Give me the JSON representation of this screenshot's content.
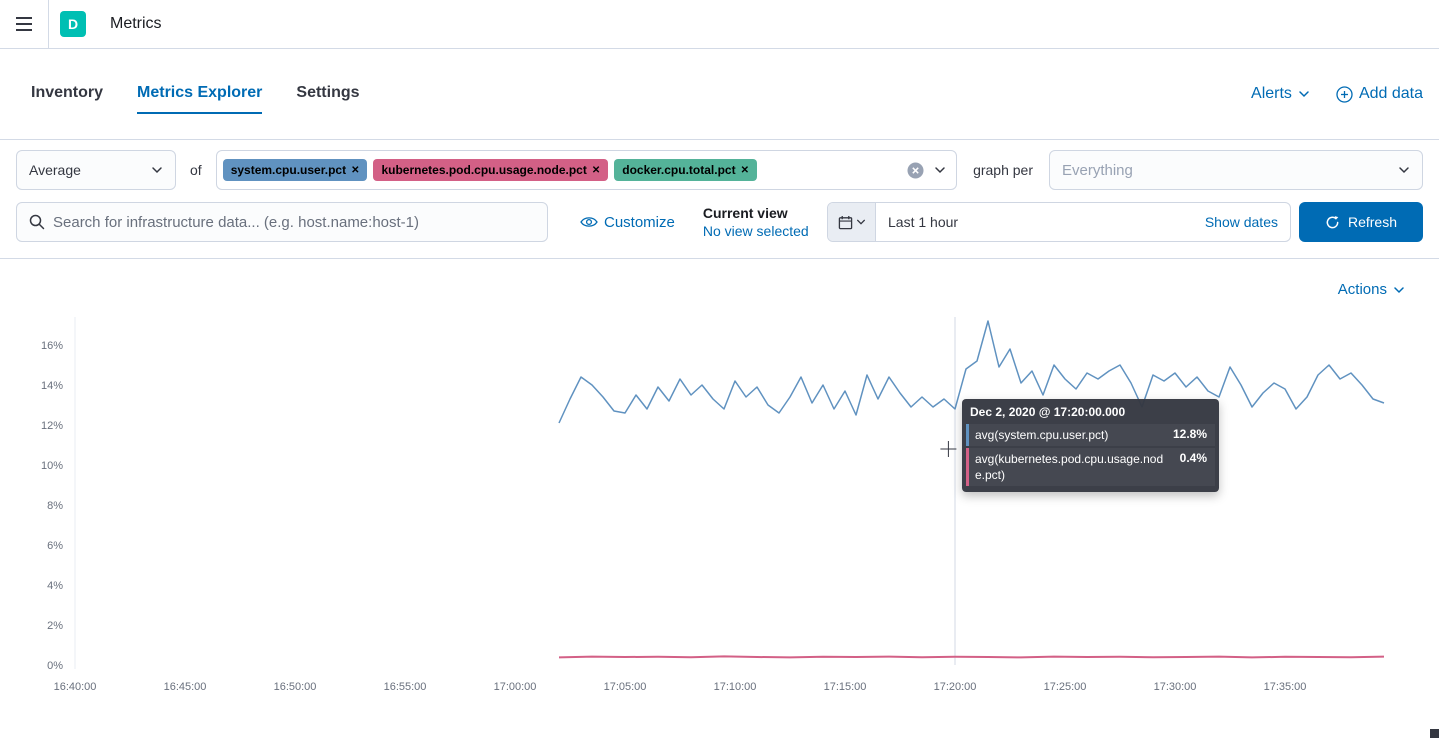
{
  "header": {
    "logo": "D",
    "title": "Metrics"
  },
  "tabs": [
    {
      "label": "Inventory",
      "active": false
    },
    {
      "label": "Metrics Explorer",
      "active": true
    },
    {
      "label": "Settings",
      "active": false
    }
  ],
  "nav_actions": {
    "alerts": "Alerts",
    "add_data": "Add data"
  },
  "toolbar": {
    "aggregation": "Average",
    "of_label": "of",
    "metrics": [
      {
        "label": "system.cpu.user.pct",
        "color": "#6092C0"
      },
      {
        "label": "kubernetes.pod.cpu.usage.node.pct",
        "color": "#D36086"
      },
      {
        "label": "docker.cpu.total.pct",
        "color": "#54B399"
      }
    ],
    "graph_per_label": "graph per",
    "graph_per_placeholder": "Everything"
  },
  "searchbar": {
    "placeholder": "Search for infrastructure data... (e.g. host.name:host-1)",
    "customize_label": "Customize",
    "current_view_label": "Current view",
    "current_view_value": "No view selected",
    "time_range": "Last 1 hour",
    "show_dates": "Show dates",
    "refresh_label": "Refresh"
  },
  "chart_section": {
    "actions_label": "Actions"
  },
  "tooltip": {
    "title": "Dec 2, 2020 @ 17:20:00.000",
    "rows": [
      {
        "label": "avg(system.cpu.user.pct)",
        "value": "12.8%",
        "color": "#6092C0"
      },
      {
        "label": "avg(kubernetes.pod.cpu.usage.node.pct)",
        "value": "0.4%",
        "color": "#D36086"
      }
    ]
  },
  "chart_data": {
    "type": "line",
    "title": "",
    "xlabel": "",
    "ylabel": "",
    "x_axis_start_time": "16:40:00",
    "x_ticks": [
      {
        "label": "16:40:00",
        "minute": 0
      },
      {
        "label": "16:45:00",
        "minute": 5
      },
      {
        "label": "16:50:00",
        "minute": 10
      },
      {
        "label": "16:55:00",
        "minute": 15
      },
      {
        "label": "17:00:00",
        "minute": 20
      },
      {
        "label": "17:05:00",
        "minute": 25
      },
      {
        "label": "17:10:00",
        "minute": 30
      },
      {
        "label": "17:15:00",
        "minute": 35
      },
      {
        "label": "17:20:00",
        "minute": 40
      },
      {
        "label": "17:25:00",
        "minute": 45
      },
      {
        "label": "17:30:00",
        "minute": 50
      },
      {
        "label": "17:35:00",
        "minute": 55
      }
    ],
    "y_ticks": [
      {
        "label": "0%",
        "value": 0
      },
      {
        "label": "2%",
        "value": 2
      },
      {
        "label": "4%",
        "value": 4
      },
      {
        "label": "6%",
        "value": 6
      },
      {
        "label": "8%",
        "value": 8
      },
      {
        "label": "10%",
        "value": 10
      },
      {
        "label": "12%",
        "value": 12
      },
      {
        "label": "14%",
        "value": 14
      },
      {
        "label": "16%",
        "value": 16
      }
    ],
    "ylim": [
      0,
      17.4
    ],
    "x_range_minutes": [
      0,
      60
    ],
    "grid": false,
    "crosshair_minute": 40,
    "cursor": {
      "minute": 39.7,
      "pct": 10.8
    },
    "series": [
      {
        "name": "avg(system.cpu.user.pct)",
        "color": "#6092C0",
        "width": 1.5,
        "points": [
          [
            22,
            12.1
          ],
          [
            22.5,
            13.3
          ],
          [
            23,
            14.4
          ],
          [
            23.5,
            14.0
          ],
          [
            24,
            13.4
          ],
          [
            24.5,
            12.7
          ],
          [
            25,
            12.6
          ],
          [
            25.5,
            13.5
          ],
          [
            26,
            12.8
          ],
          [
            26.5,
            13.9
          ],
          [
            27,
            13.2
          ],
          [
            27.5,
            14.3
          ],
          [
            28,
            13.5
          ],
          [
            28.5,
            14.0
          ],
          [
            29,
            13.3
          ],
          [
            29.5,
            12.8
          ],
          [
            30,
            14.2
          ],
          [
            30.5,
            13.4
          ],
          [
            31,
            13.9
          ],
          [
            31.5,
            13.0
          ],
          [
            32,
            12.6
          ],
          [
            32.5,
            13.4
          ],
          [
            33,
            14.4
          ],
          [
            33.5,
            13.1
          ],
          [
            34,
            14.0
          ],
          [
            34.5,
            12.8
          ],
          [
            35,
            13.7
          ],
          [
            35.5,
            12.5
          ],
          [
            36,
            14.5
          ],
          [
            36.5,
            13.3
          ],
          [
            37,
            14.4
          ],
          [
            37.5,
            13.6
          ],
          [
            38,
            12.9
          ],
          [
            38.5,
            13.4
          ],
          [
            39,
            12.9
          ],
          [
            39.5,
            13.3
          ],
          [
            40,
            12.8
          ],
          [
            40.5,
            14.8
          ],
          [
            41,
            15.2
          ],
          [
            41.5,
            17.2
          ],
          [
            42,
            14.9
          ],
          [
            42.5,
            15.8
          ],
          [
            43,
            14.1
          ],
          [
            43.5,
            14.7
          ],
          [
            44,
            13.5
          ],
          [
            44.5,
            15.0
          ],
          [
            45,
            14.3
          ],
          [
            45.5,
            13.8
          ],
          [
            46,
            14.6
          ],
          [
            46.5,
            14.3
          ],
          [
            47,
            14.7
          ],
          [
            47.5,
            15.0
          ],
          [
            48,
            14.1
          ],
          [
            48.5,
            12.9
          ],
          [
            49,
            14.5
          ],
          [
            49.5,
            14.2
          ],
          [
            50,
            14.6
          ],
          [
            50.5,
            13.9
          ],
          [
            51,
            14.4
          ],
          [
            51.5,
            13.7
          ],
          [
            52,
            13.4
          ],
          [
            52.5,
            14.9
          ],
          [
            53,
            14.0
          ],
          [
            53.5,
            12.9
          ],
          [
            54,
            13.6
          ],
          [
            54.5,
            14.1
          ],
          [
            55,
            13.8
          ],
          [
            55.5,
            12.8
          ],
          [
            56,
            13.4
          ],
          [
            56.5,
            14.5
          ],
          [
            57,
            15.0
          ],
          [
            57.5,
            14.3
          ],
          [
            58,
            14.6
          ],
          [
            58.5,
            14.0
          ],
          [
            59,
            13.3
          ],
          [
            59.5,
            13.1
          ]
        ]
      },
      {
        "name": "avg(kubernetes.pod.cpu.usage.node.pct)",
        "color": "#D36086",
        "width": 2,
        "points": [
          [
            22,
            0.38
          ],
          [
            23.5,
            0.42
          ],
          [
            25,
            0.4
          ],
          [
            26.5,
            0.41
          ],
          [
            28,
            0.39
          ],
          [
            29.5,
            0.43
          ],
          [
            31,
            0.4
          ],
          [
            32.5,
            0.38
          ],
          [
            34,
            0.41
          ],
          [
            35.5,
            0.4
          ],
          [
            37,
            0.42
          ],
          [
            38.5,
            0.39
          ],
          [
            40,
            0.41
          ],
          [
            41.5,
            0.4
          ],
          [
            43,
            0.38
          ],
          [
            44.5,
            0.42
          ],
          [
            46,
            0.4
          ],
          [
            47.5,
            0.41
          ],
          [
            49,
            0.39
          ],
          [
            50.5,
            0.4
          ],
          [
            52,
            0.42
          ],
          [
            53.5,
            0.38
          ],
          [
            55,
            0.41
          ],
          [
            56.5,
            0.4
          ],
          [
            58,
            0.39
          ],
          [
            59.5,
            0.42
          ]
        ]
      }
    ]
  }
}
